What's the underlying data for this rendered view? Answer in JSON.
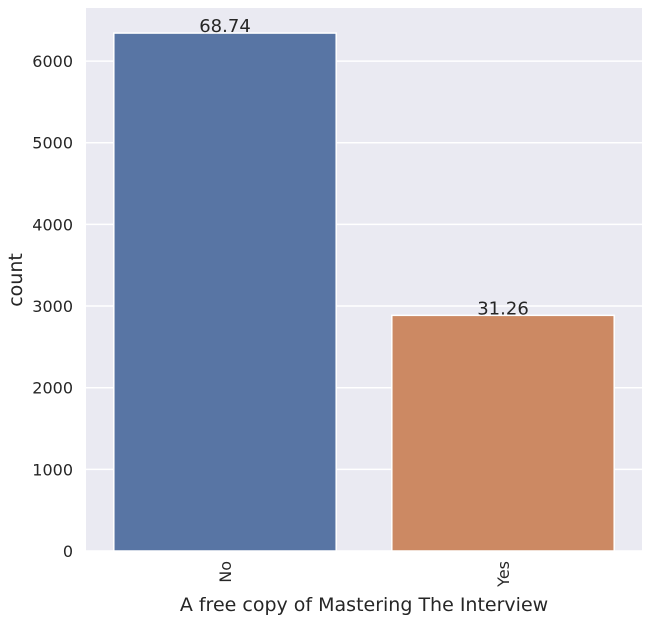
{
  "chart_data": {
    "type": "bar",
    "categories": [
      "No",
      "Yes"
    ],
    "values": [
      6343,
      2886
    ],
    "bar_labels": [
      "68.74",
      "31.26"
    ],
    "xlabel": "A free copy of Mastering The Interview",
    "ylabel": "count",
    "ylim": [
      0,
      6650
    ],
    "yticks": [
      0,
      1000,
      2000,
      3000,
      4000,
      5000,
      6000
    ],
    "grid": true,
    "x_tick_rotation": 90,
    "colors": {
      "bars": [
        "#5875a4",
        "#cc8963"
      ],
      "plot_background": "#eaeaf2",
      "grid": "#ffffff",
      "text": "#262626"
    }
  }
}
